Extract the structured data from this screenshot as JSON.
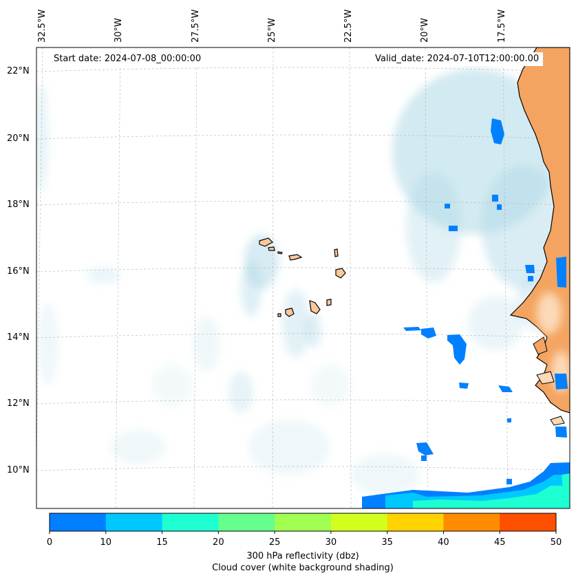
{
  "map": {
    "start_date": "Start date: 2024-07-08_00:00:00",
    "valid_date": "Valid_date: 2024-07-10T12:00:00.00",
    "lat_labels": [
      "22°N",
      "20°N",
      "18°N",
      "16°N",
      "14°N",
      "12°N",
      "10°N"
    ],
    "lon_labels": [
      "32.5°W",
      "30°W",
      "27.5°W",
      "25°W",
      "22.5°W",
      "20°W",
      "17.5°W"
    ],
    "land_color": "#f4a460",
    "island_color": "#fcc89b",
    "cloud_color": "#add8e6"
  },
  "colorbar": {
    "ticks": [
      "0",
      "10",
      "15",
      "20",
      "25",
      "30",
      "35",
      "40",
      "45",
      "50"
    ],
    "colors": [
      "#0080ff",
      "#00c8ff",
      "#1effd2",
      "#64ff8c",
      "#a0ff50",
      "#d2ff1e",
      "#ffd200",
      "#ff8c00",
      "#ff5000"
    ],
    "label_line1": "300 hPa reflectivity (dbz)",
    "label_line2": "Cloud cover (white background shading)"
  }
}
